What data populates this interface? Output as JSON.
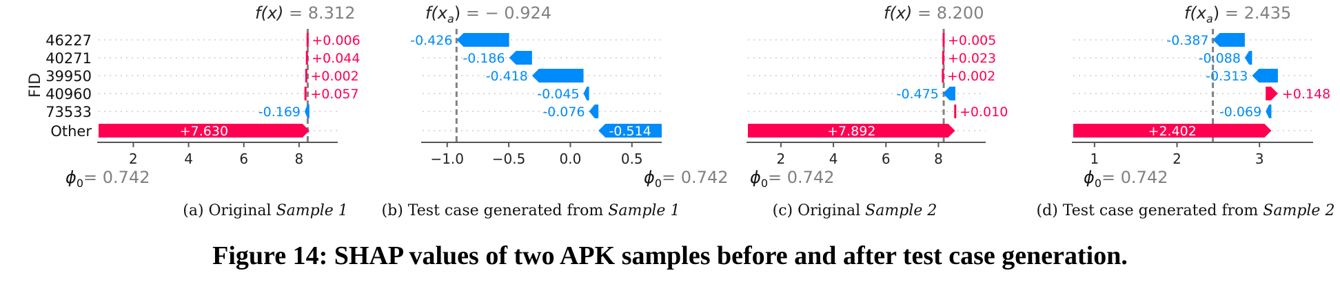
{
  "figure": {
    "caption": "Figure 14: SHAP values of two APK samples before and after test case generation."
  },
  "y_axis_label": "FID",
  "base_value_label": "ϕ₀= 0.742",
  "colors": {
    "positive": "#ff0051",
    "negative": "#008bfb",
    "axis": "#555555",
    "dotted": "#cccccc",
    "value_line": "#808080"
  },
  "chart_data": [
    {
      "id": "a",
      "type": "waterfall",
      "caption_prefix": "(a) Original ",
      "caption_italic": "Sample 1",
      "fx_label": "f(x)",
      "fx_value": "= 8.312",
      "fx": 8.312,
      "base": 0.742,
      "xlim": [
        0.742,
        9.4
      ],
      "xticks": [
        2,
        4,
        6,
        8
      ],
      "tick_labels": [
        "2",
        "4",
        "6",
        "8"
      ],
      "rows": [
        {
          "feature": "46227",
          "value": 0.006,
          "label": "+0.006"
        },
        {
          "feature": "40271",
          "value": 0.044,
          "label": "+0.044"
        },
        {
          "feature": "39950",
          "value": 0.002,
          "label": "+0.002"
        },
        {
          "feature": "40960",
          "value": 0.057,
          "label": "+0.057"
        },
        {
          "feature": "73533",
          "value": -0.169,
          "label": "-0.169"
        },
        {
          "feature": "Other",
          "value": 7.63,
          "label": "+7.630"
        }
      ]
    },
    {
      "id": "b",
      "type": "waterfall",
      "caption_prefix": "(b) Test case generated from ",
      "caption_italic": "Sample 1",
      "fx_label": "f(x_a)",
      "fx_value": "= − 0.924",
      "fx": -0.924,
      "base": 0.742,
      "xlim": [
        -1.2,
        0.742
      ],
      "xticks": [
        -1.0,
        -0.5,
        0.0,
        0.5
      ],
      "tick_labels": [
        "−1.0",
        "−0.5",
        "0.0",
        "0.5"
      ],
      "rows": [
        {
          "value": -0.426,
          "label": "-0.426"
        },
        {
          "value": -0.186,
          "label": "-0.186"
        },
        {
          "value": -0.418,
          "label": "-0.418"
        },
        {
          "value": -0.045,
          "label": "-0.045"
        },
        {
          "value": -0.076,
          "label": "-0.076"
        },
        {
          "value": -0.514,
          "label": "-0.514"
        }
      ]
    },
    {
      "id": "c",
      "type": "waterfall",
      "caption_prefix": "(c) Original ",
      "caption_italic": "Sample 2",
      "fx_label": "f(x)",
      "fx_value": "= 8.200",
      "fx": 8.2,
      "base": 0.742,
      "xlim": [
        0.742,
        9.8
      ],
      "xticks": [
        2,
        4,
        6,
        8
      ],
      "tick_labels": [
        "2",
        "4",
        "6",
        "8"
      ],
      "rows": [
        {
          "value": 0.005,
          "label": "+0.005"
        },
        {
          "value": 0.023,
          "label": "+0.023"
        },
        {
          "value": 0.002,
          "label": "+0.002"
        },
        {
          "value": -0.475,
          "label": "-0.475"
        },
        {
          "value": 0.01,
          "label": "+0.010"
        },
        {
          "value": 7.892,
          "label": "+7.892"
        }
      ]
    },
    {
      "id": "d",
      "type": "waterfall",
      "caption_prefix": "(d) Test case generated from ",
      "caption_italic": "Sample 2",
      "fx_label": "f(x_a)",
      "fx_value": "= 2.435",
      "fx": 2.435,
      "base": 0.742,
      "xlim": [
        0.742,
        3.65
      ],
      "xticks": [
        1,
        2,
        3
      ],
      "tick_labels": [
        "1",
        "2",
        "3"
      ],
      "rows": [
        {
          "value": -0.387,
          "label": "-0.387"
        },
        {
          "value": -0.088,
          "label": "-0.088"
        },
        {
          "value": -0.313,
          "label": "-0.313"
        },
        {
          "value": 0.148,
          "label": "+0.148"
        },
        {
          "value": -0.069,
          "label": "-0.069"
        },
        {
          "value": 2.402,
          "label": "+2.402"
        }
      ]
    }
  ]
}
